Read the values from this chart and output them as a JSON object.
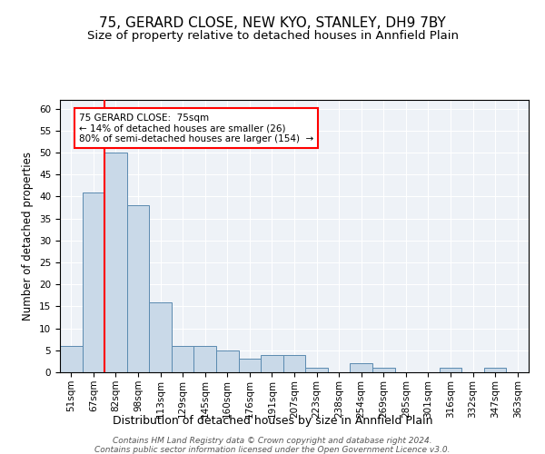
{
  "title": "75, GERARD CLOSE, NEW KYO, STANLEY, DH9 7BY",
  "subtitle": "Size of property relative to detached houses in Annfield Plain",
  "xlabel": "Distribution of detached houses by size in Annfield Plain",
  "ylabel": "Number of detached properties",
  "categories": [
    "51sqm",
    "67sqm",
    "82sqm",
    "98sqm",
    "113sqm",
    "129sqm",
    "145sqm",
    "160sqm",
    "176sqm",
    "191sqm",
    "207sqm",
    "223sqm",
    "238sqm",
    "254sqm",
    "269sqm",
    "285sqm",
    "301sqm",
    "316sqm",
    "332sqm",
    "347sqm",
    "363sqm"
  ],
  "values": [
    6,
    41,
    50,
    38,
    16,
    6,
    6,
    5,
    3,
    4,
    4,
    1,
    0,
    2,
    1,
    0,
    0,
    1,
    0,
    1,
    0
  ],
  "bar_color": "#c9d9e8",
  "bar_edge_color": "#5a8ab0",
  "vline_x": 1.5,
  "vline_color": "red",
  "annotation_text": "75 GERARD CLOSE:  75sqm\n← 14% of detached houses are smaller (26)\n80% of semi-detached houses are larger (154)  →",
  "annotation_box_color": "white",
  "annotation_box_edge": "red",
  "ylim": [
    0,
    62
  ],
  "yticks": [
    0,
    5,
    10,
    15,
    20,
    25,
    30,
    35,
    40,
    45,
    50,
    55,
    60
  ],
  "footer": "Contains HM Land Registry data © Crown copyright and database right 2024.\nContains public sector information licensed under the Open Government Licence v3.0.",
  "title_fontsize": 11,
  "subtitle_fontsize": 9.5,
  "xlabel_fontsize": 9,
  "ylabel_fontsize": 8.5,
  "tick_fontsize": 7.5,
  "footer_fontsize": 6.5,
  "annotation_fontsize": 7.5,
  "background_color": "#eef2f7"
}
